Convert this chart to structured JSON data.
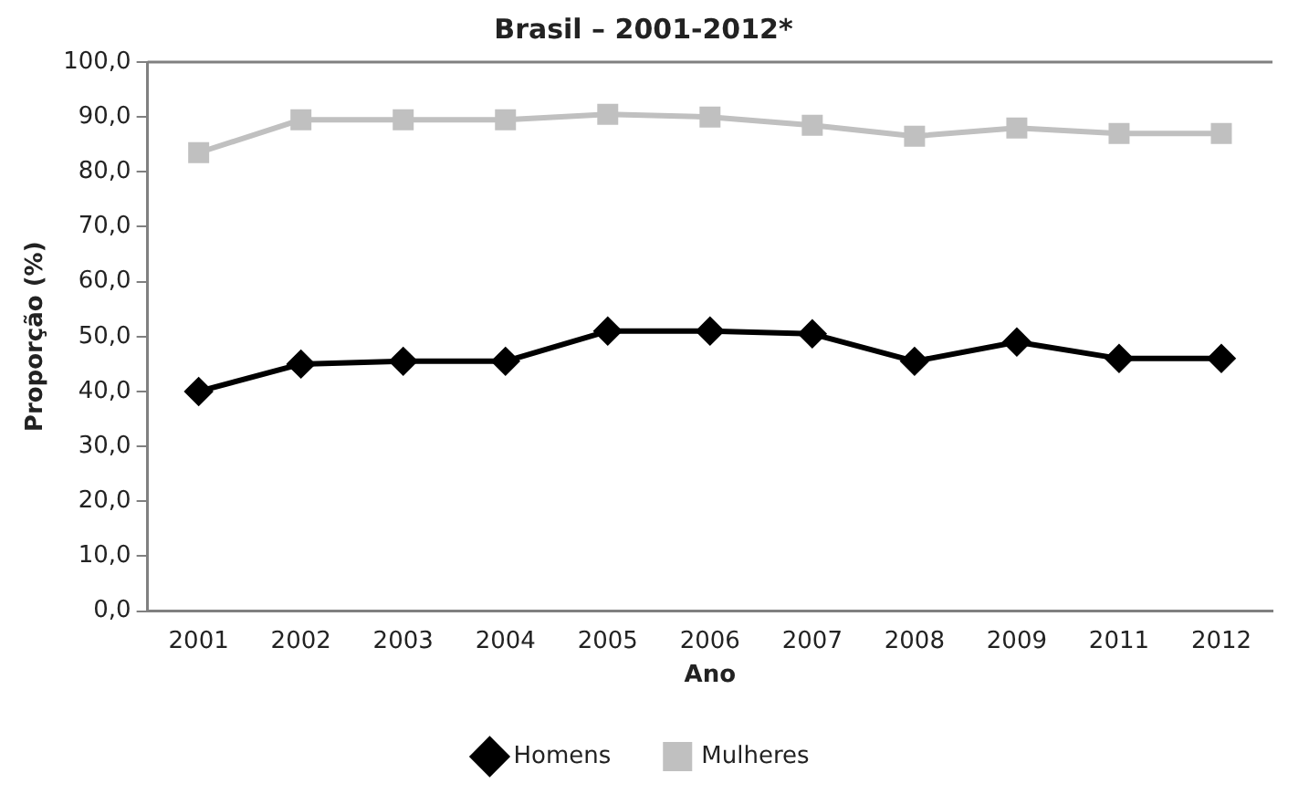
{
  "chart_data": {
    "type": "line",
    "title": "Brasil – 2001-2012*",
    "xlabel": "Ano",
    "ylabel": "Proporção (%)",
    "categories": [
      "2001",
      "2002",
      "2003",
      "2004",
      "2005",
      "2006",
      "2007",
      "2008",
      "2009",
      "2011",
      "2012"
    ],
    "series": [
      {
        "name": "Homens",
        "color": "#000000",
        "marker": "diamond",
        "values": [
          40,
          45,
          45.5,
          45.5,
          51,
          51,
          50.5,
          45.5,
          49,
          46,
          46
        ]
      },
      {
        "name": "Mulheres",
        "color": "#c0c0c0",
        "marker": "square",
        "values": [
          83.5,
          89.5,
          89.5,
          89.5,
          90.5,
          90,
          88.5,
          86.5,
          88,
          87,
          87
        ]
      }
    ],
    "ylim": [
      0,
      100
    ],
    "yticks": [
      {
        "value": 0,
        "label": "0,0"
      },
      {
        "value": 10,
        "label": "10,0"
      },
      {
        "value": 20,
        "label": "20,0"
      },
      {
        "value": 30,
        "label": "30,0"
      },
      {
        "value": 40,
        "label": "40,0"
      },
      {
        "value": 50,
        "label": "50,0"
      },
      {
        "value": 60,
        "label": "60,0"
      },
      {
        "value": 70,
        "label": "70,0"
      },
      {
        "value": 80,
        "label": "80,0"
      },
      {
        "value": 90,
        "label": "90,0"
      },
      {
        "value": 100,
        "label": "100,0"
      }
    ],
    "grid": false,
    "legend": "bottom"
  }
}
